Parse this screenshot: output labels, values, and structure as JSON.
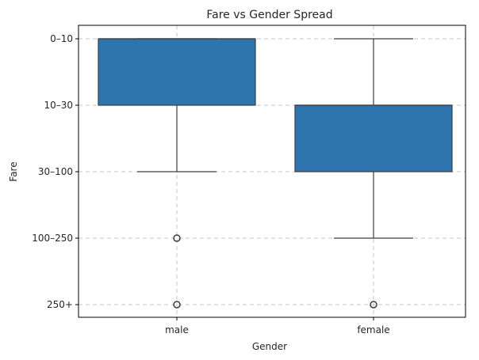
{
  "chart_data": {
    "type": "box",
    "title": "Fare vs Gender Spread",
    "xlabel": "Gender",
    "ylabel": "Fare",
    "x_categories": [
      "male",
      "female"
    ],
    "y_categories": [
      "0–10",
      "10–30",
      "30–100",
      "100–250",
      "250+"
    ],
    "y_order": "top-to-bottom",
    "grid": true,
    "grid_style": "dashed",
    "box_color": "#2e75b0",
    "series": [
      {
        "category": "male",
        "whisker_low": "0–10",
        "q1": "0–10",
        "median": "0–10",
        "q3": "10–30",
        "whisker_high": "30–100",
        "outliers": [
          "100–250",
          "250+"
        ]
      },
      {
        "category": "female",
        "whisker_low": "0–10",
        "q1": "10–30",
        "median": "10–30",
        "q3": "30–100",
        "whisker_high": "100–250",
        "outliers": [
          "250+"
        ]
      }
    ]
  }
}
